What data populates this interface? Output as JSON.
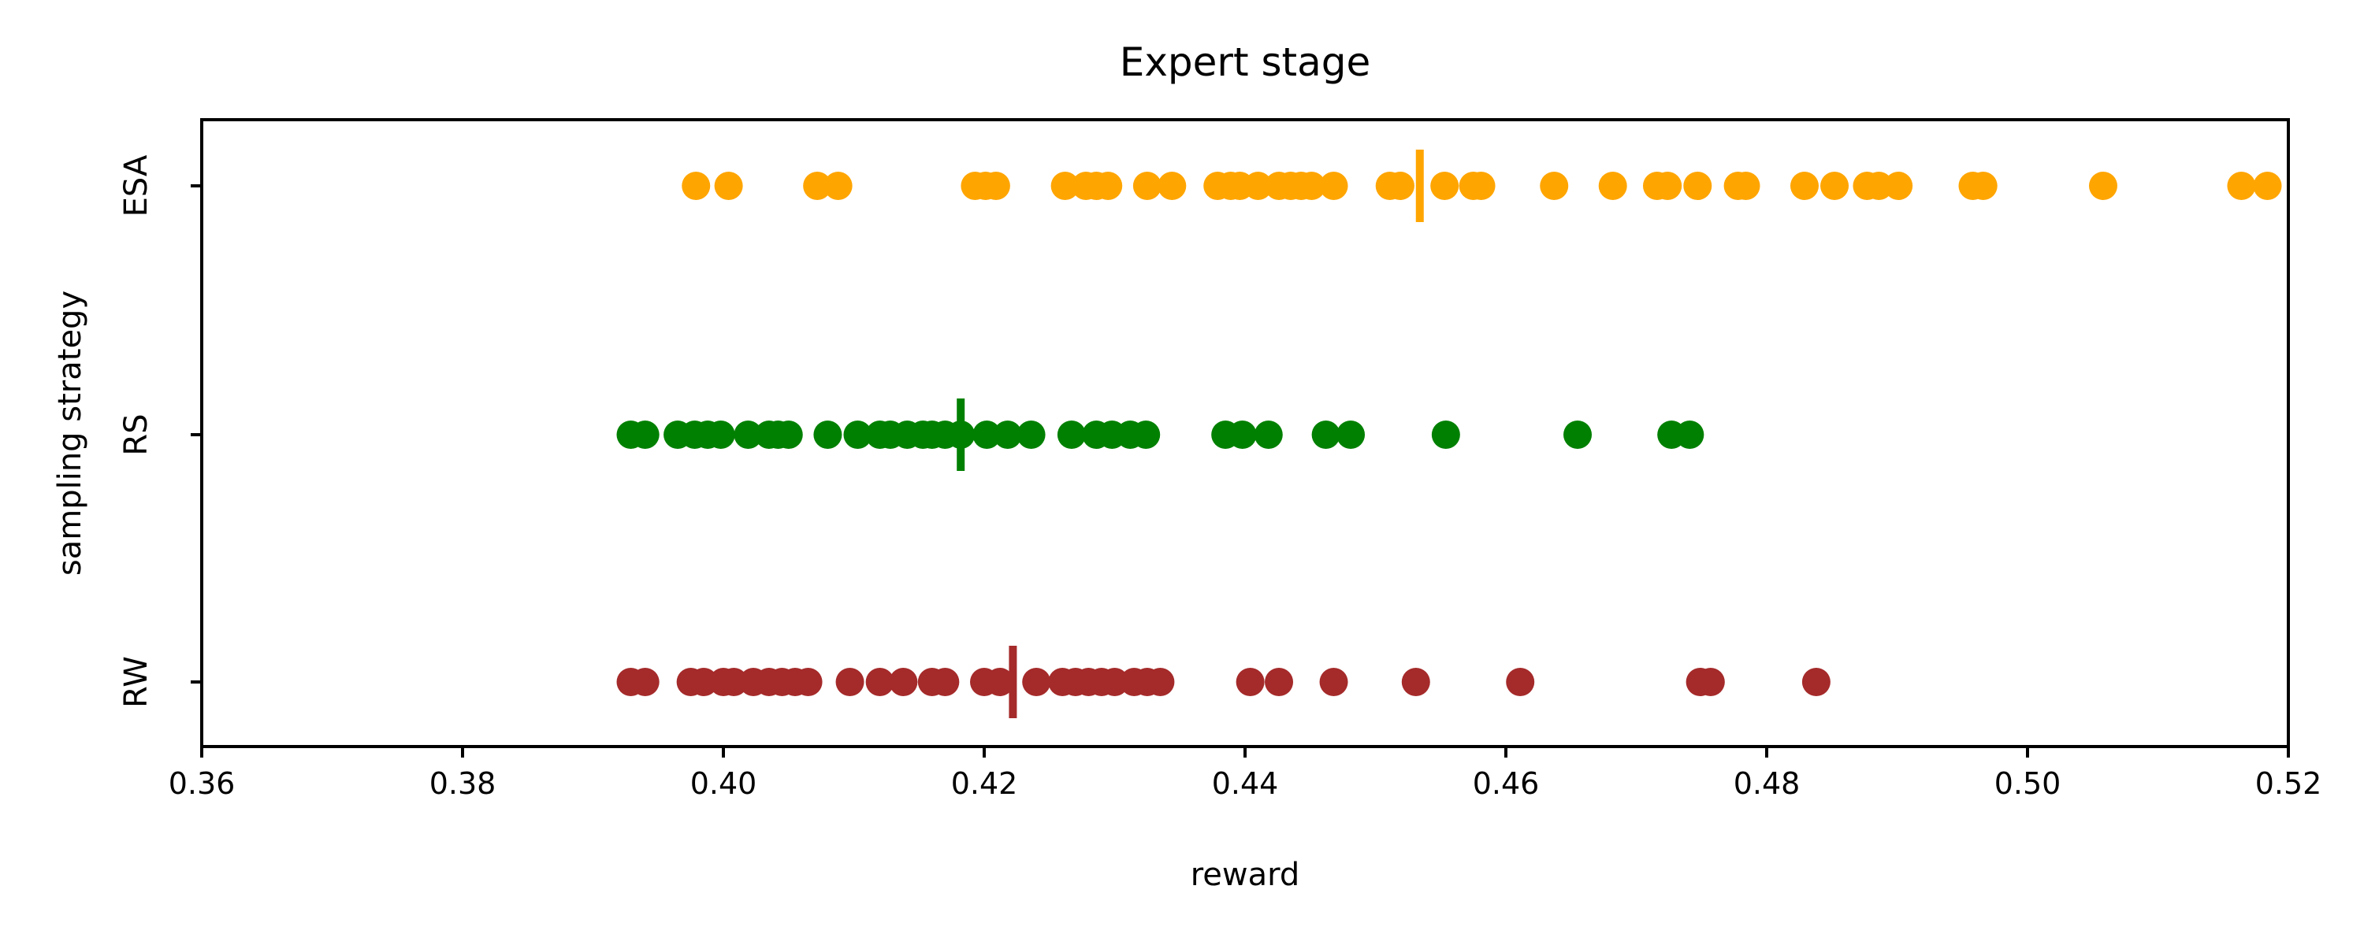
{
  "chart_data": {
    "type": "scatter",
    "title": "Expert stage",
    "xlabel": "reward",
    "ylabel": "sampling strategy",
    "xlim": [
      0.36,
      0.52
    ],
    "xticks": [
      "0.36",
      "0.38",
      "0.40",
      "0.42",
      "0.44",
      "0.46",
      "0.48",
      "0.50",
      "0.52"
    ],
    "categories": [
      "ESA",
      "RS",
      "RW"
    ],
    "grid": false,
    "series": [
      {
        "name": "ESA",
        "color": "#ffa500",
        "mean": 0.4534,
        "values": [
          0.3979,
          0.4004,
          0.4072,
          0.4088,
          0.4193,
          0.4201,
          0.4209,
          0.4262,
          0.4278,
          0.4286,
          0.4295,
          0.4325,
          0.4344,
          0.4379,
          0.4389,
          0.4396,
          0.441,
          0.4426,
          0.4435,
          0.4443,
          0.4451,
          0.4468,
          0.4511,
          0.4519,
          0.4553,
          0.4575,
          0.4581,
          0.4637,
          0.4682,
          0.4716,
          0.4724,
          0.4747,
          0.4778,
          0.4784,
          0.4829,
          0.4852,
          0.4877,
          0.4886,
          0.4901,
          0.4958,
          0.4966,
          0.5058,
          0.5164,
          0.5184
        ]
      },
      {
        "name": "RS",
        "color": "#008000",
        "mean": 0.4182,
        "values": [
          0.3929,
          0.394,
          0.3965,
          0.3978,
          0.3988,
          0.3998,
          0.4019,
          0.4035,
          0.4042,
          0.405,
          0.408,
          0.4103,
          0.412,
          0.4128,
          0.4141,
          0.4153,
          0.416,
          0.417,
          0.4182,
          0.4202,
          0.4218,
          0.4236,
          0.4267,
          0.4286,
          0.4298,
          0.4312,
          0.4324,
          0.4385,
          0.4398,
          0.4418,
          0.4462,
          0.4481,
          0.4554,
          0.4655,
          0.4727,
          0.4741
        ]
      },
      {
        "name": "RW",
        "color": "#a52a2a",
        "mean": 0.4222,
        "values": [
          0.3929,
          0.394,
          0.3975,
          0.3985,
          0.4,
          0.4008,
          0.4023,
          0.4035,
          0.4045,
          0.4055,
          0.4065,
          0.4097,
          0.412,
          0.4138,
          0.416,
          0.417,
          0.42,
          0.4212,
          0.424,
          0.426,
          0.427,
          0.428,
          0.429,
          0.43,
          0.4315,
          0.4325,
          0.4335,
          0.4404,
          0.4426,
          0.4468,
          0.4531,
          0.4611,
          0.4749,
          0.4757,
          0.4838
        ]
      }
    ]
  }
}
